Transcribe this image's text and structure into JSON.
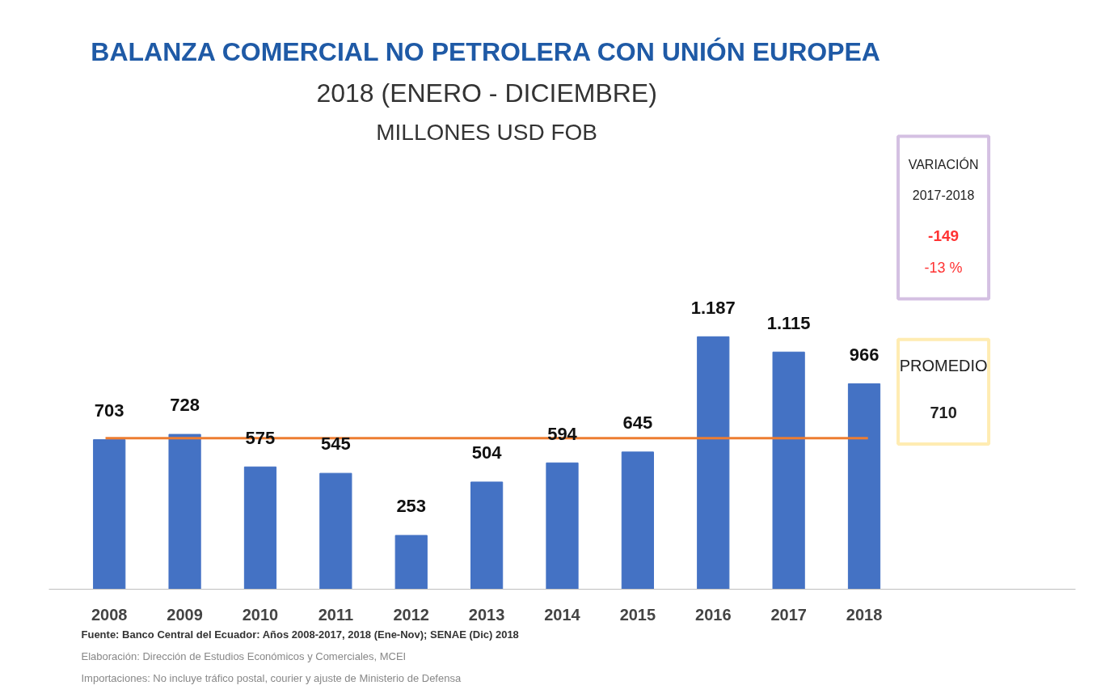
{
  "chart_data": {
    "type": "bar",
    "title": "BALANZA COMERCIAL NO PETROLERA CON UNIÓN EUROPEA",
    "subtitle": "2018 (ENERO - DICIEMBRE)",
    "categories": [
      "2008",
      "2009",
      "2010",
      "2011",
      "2012",
      "2013",
      "2014",
      "2015",
      "2016",
      "2017",
      "2018"
    ],
    "values": [
      703,
      728,
      575,
      545,
      253,
      504,
      594,
      645,
      1187,
      1115,
      966
    ],
    "value_labels": [
      "703",
      "728",
      "575",
      "545",
      "253",
      "504",
      "594",
      "645",
      "1.187",
      "1.115",
      "966"
    ],
    "color": "#4472c4",
    "grid": false,
    "ref_lines": [
      {
        "axis": "y",
        "value": 710,
        "color": "#ed7d31"
      }
    ],
    "annotations": [
      "MILLONES USD FOB",
      "VARIACIÓN",
      "2017-2018",
      "-149",
      "-13 %",
      "PROMEDIO",
      "710",
      "Fuente: Banco Central del Ecuador: Años 2008-2017, 2018 (Ene-Nov); SENAE (Dic) 2018",
      "Elaboración: Dirección de Estudios Económicos y Comerciales, MCEI",
      "Importaciones: No incluye tráfico postal, courier y ajuste de Ministerio de Defensa"
    ]
  }
}
